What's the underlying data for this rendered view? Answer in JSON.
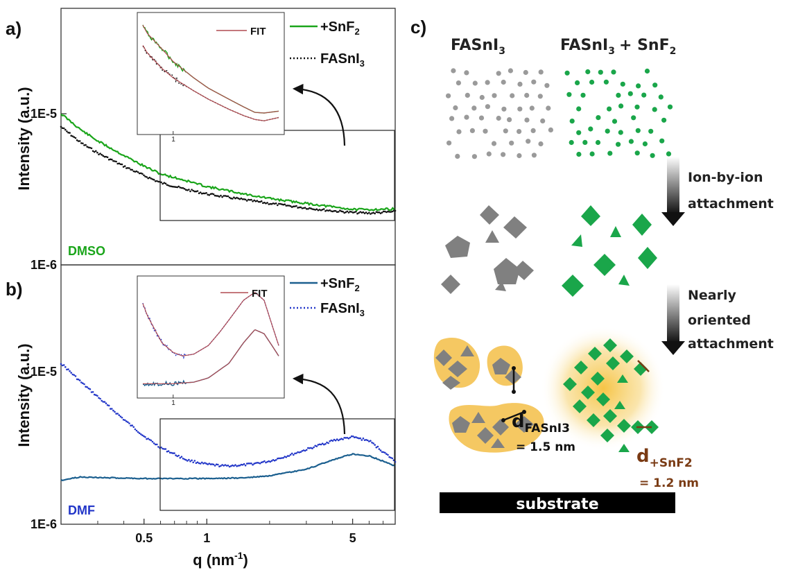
{
  "panels": {
    "a": "a)",
    "b": "b)",
    "c": "c)"
  },
  "colors": {
    "green": "#1aa51a",
    "black_dotted": "#111111",
    "fit_red": "#b04a50",
    "blue_solid": "#1b5f8f",
    "blue_dotted": "#2236c8",
    "grey_particle": "#9a9a9a",
    "green_particle": "#1aa64a",
    "cluster_fill": "#f5c862",
    "brown": "#7a3b14"
  },
  "chart_data": [
    {
      "type": "line",
      "panel": "a)",
      "xscale": "log",
      "yscale": "log",
      "xlim": [
        0.2,
        8
      ],
      "ylim": [
        1e-06,
        3e-05
      ],
      "xticks": [
        0.5,
        1,
        5
      ],
      "xtick_labels": [
        "0.5",
        "1",
        "5"
      ],
      "yticks": [
        1e-05,
        1e-06
      ],
      "ytick_labels": [
        "1E-5",
        "1E-6"
      ],
      "ylabel": "Intensity (a.u.)",
      "annotation": "DMSO",
      "legend": [
        "+SnF",
        "FASnI"
      ],
      "series": [
        {
          "name": "+SnF2",
          "style": "solid",
          "x": [
            0.2,
            0.25,
            0.3,
            0.4,
            0.5,
            0.6,
            0.8,
            1.0,
            1.5,
            2.0,
            3.0,
            4.0,
            5.0,
            6.0,
            8.0
          ],
          "y": [
            1e-05,
            7.8e-06,
            6.6e-06,
            5.3e-06,
            4.5e-06,
            4e-06,
            3.6e-06,
            3.3e-06,
            2.95e-06,
            2.75e-06,
            2.55e-06,
            2.42e-06,
            2.33e-06,
            2.32e-06,
            2.35e-06
          ]
        },
        {
          "name": "FASnI3",
          "style": "dotted",
          "x": [
            0.2,
            0.25,
            0.3,
            0.4,
            0.5,
            0.6,
            0.8,
            1.0,
            1.5,
            2.0,
            3.0,
            4.0,
            5.0,
            6.0,
            8.0
          ],
          "y": [
            8.2e-06,
            6.4e-06,
            5.5e-06,
            4.5e-06,
            3.9e-06,
            3.5e-06,
            3.15e-06,
            2.95e-06,
            2.7e-06,
            2.55e-06,
            2.38e-06,
            2.28e-06,
            2.22e-06,
            2.2e-06,
            2.25e-06
          ]
        }
      ],
      "inset": {
        "legend": "FIT",
        "xtick_label": "1"
      }
    },
    {
      "type": "line",
      "panel": "b)",
      "xscale": "log",
      "yscale": "log",
      "xlim": [
        0.2,
        8
      ],
      "ylim": [
        1e-06,
        3e-05
      ],
      "xticks": [
        0.5,
        1,
        5
      ],
      "xtick_labels": [
        "0.5",
        "1",
        "5"
      ],
      "yticks": [
        1e-05,
        1e-06
      ],
      "ytick_labels": [
        "1E-5",
        "1E-6"
      ],
      "xlabel": "q (nm",
      "ylabel": "Intensity (a.u.)",
      "annotation": "DMF",
      "legend": [
        "+SnF",
        "FASnI"
      ],
      "series": [
        {
          "name": "+SnF2",
          "style": "solid",
          "x": [
            0.2,
            0.25,
            0.3,
            0.5,
            0.8,
            1.0,
            1.5,
            2.0,
            3.0,
            4.0,
            5.0,
            6.0,
            7.0,
            8.0
          ],
          "y": [
            1.95e-06,
            2.05e-06,
            2.03e-06,
            2e-06,
            2e-06,
            2e-06,
            2.02e-06,
            2.08e-06,
            2.3e-06,
            2.65e-06,
            2.9e-06,
            2.82e-06,
            2.6e-06,
            2.42e-06
          ]
        },
        {
          "name": "FASnI3",
          "style": "dotted",
          "x": [
            0.2,
            0.25,
            0.3,
            0.4,
            0.5,
            0.6,
            0.8,
            1.0,
            1.2,
            1.5,
            2.0,
            2.5,
            3.0,
            4.0,
            5.0,
            6.0,
            7.0,
            8.0
          ],
          "y": [
            1.15e-05,
            8.6e-06,
            6.9e-06,
            4.9e-06,
            3.8e-06,
            3.2e-06,
            2.65e-06,
            2.48e-06,
            2.42e-06,
            2.45e-06,
            2.6e-06,
            2.85e-06,
            3.1e-06,
            3.55e-06,
            3.75e-06,
            3.55e-06,
            3e-06,
            2.6e-06
          ]
        }
      ],
      "inset": {
        "legend": "FIT",
        "xtick_label": "1"
      }
    }
  ],
  "diagram": {
    "col1_title": "FASnI",
    "col2_title": "FASnI",
    "col2_title_suffix": "+ SnF",
    "sub3": "3",
    "sub2": "2",
    "step1_line1": "Ion-by-ion",
    "step1_line2": "attachment",
    "step2_line1": "Nearly",
    "step2_line2": "oriented",
    "step2_line3": "attachment",
    "d1_main": "d",
    "d1_sub": "FASnI3",
    "d1_value": "= 1.5 nm",
    "d2_main": "d",
    "d2_sub": "+SnF2",
    "d2_value": "= 1.2 nm",
    "substrate": "substrate"
  },
  "superscripts": {
    "sub2": "2",
    "sub3": "3",
    "xlabel_exp": "-1",
    "xlabel_close": ")"
  }
}
